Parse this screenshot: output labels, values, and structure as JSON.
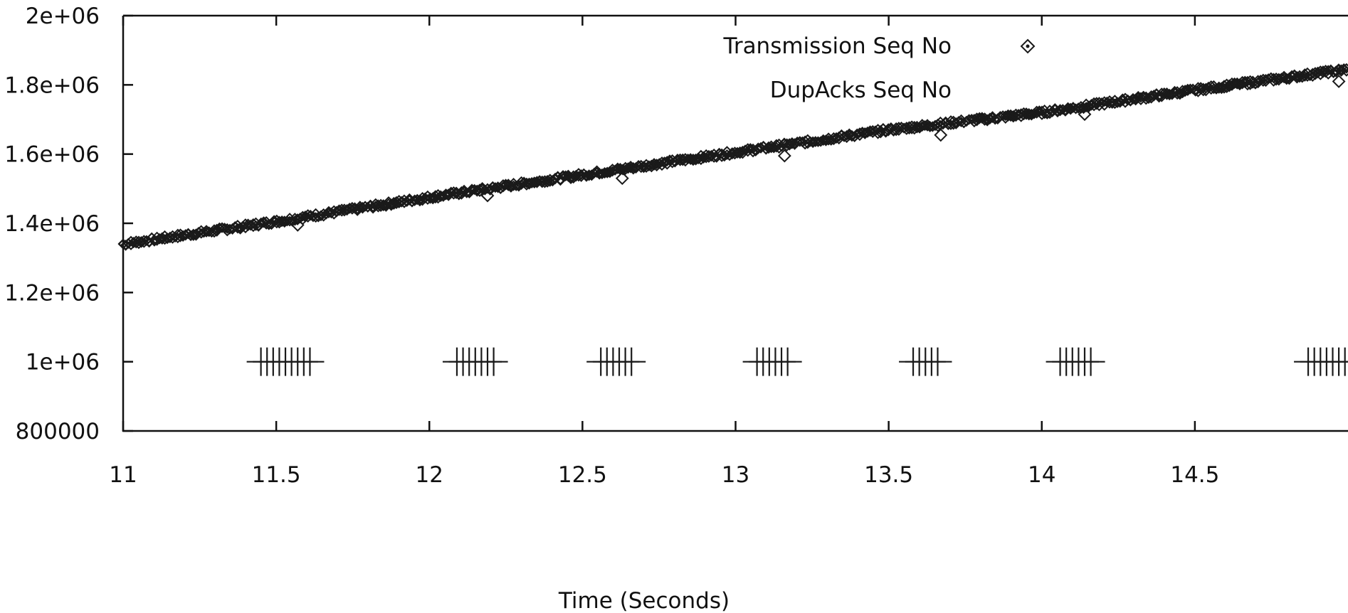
{
  "chart_data": {
    "type": "scatter",
    "xlabel": "Time (Seconds)",
    "ylabel": "",
    "xlim": [
      11,
      15
    ],
    "ylim": [
      800000,
      2000000
    ],
    "x_ticks": [
      11,
      11.5,
      12,
      12.5,
      13,
      13.5,
      14,
      14.5
    ],
    "x_tick_labels": [
      "11",
      "11.5",
      "12",
      "12.5",
      "13",
      "13.5",
      "14",
      "14.5"
    ],
    "y_ticks": [
      800000,
      1000000,
      1200000,
      1400000,
      1600000,
      1800000,
      2000000
    ],
    "y_tick_labels": [
      "800000",
      "1e+06",
      "1.2e+06",
      "1.4e+06",
      "1.6e+06",
      "1.8e+06",
      "2e+06"
    ],
    "legend_position": "top-right",
    "series": [
      {
        "name": "Transmission Seq No",
        "marker": "diamond",
        "line": {
          "x": [
            11.0,
            11.5,
            12.0,
            12.5,
            13.0,
            13.5,
            14.0,
            14.5,
            15.0
          ],
          "y": [
            1340000,
            1405000,
            1475000,
            1540000,
            1605000,
            1670000,
            1720000,
            1785000,
            1845000
          ]
        },
        "dips": {
          "x": [
            11.57,
            12.19,
            12.63,
            13.16,
            13.67,
            14.14,
            14.97
          ],
          "y": [
            1395000,
            1480000,
            1530000,
            1595000,
            1655000,
            1715000,
            1810000
          ]
        }
      },
      {
        "name": "DupAcks Seq No",
        "marker": "plus",
        "x": [
          11.45,
          11.47,
          11.49,
          11.51,
          11.53,
          11.55,
          11.57,
          11.59,
          11.61,
          12.09,
          12.11,
          12.13,
          12.15,
          12.17,
          12.19,
          12.21,
          12.56,
          12.58,
          12.6,
          12.62,
          12.64,
          12.66,
          13.07,
          13.09,
          13.11,
          13.13,
          13.15,
          13.17,
          13.58,
          13.6,
          13.62,
          13.64,
          13.66,
          14.06,
          14.08,
          14.1,
          14.12,
          14.14,
          14.16,
          14.87,
          14.89,
          14.91,
          14.93,
          14.95,
          14.97,
          14.99
        ],
        "y": [
          1000000,
          1000000,
          1000000,
          1000000,
          1000000,
          1000000,
          1000000,
          1000000,
          1000000,
          1000000,
          1000000,
          1000000,
          1000000,
          1000000,
          1000000,
          1000000,
          1000000,
          1000000,
          1000000,
          1000000,
          1000000,
          1000000,
          1000000,
          1000000,
          1000000,
          1000000,
          1000000,
          1000000,
          1000000,
          1000000,
          1000000,
          1000000,
          1000000,
          1000000,
          1000000,
          1000000,
          1000000,
          1000000,
          1000000,
          1000000,
          1000000,
          1000000,
          1000000,
          1000000,
          1000000,
          1000000
        ]
      }
    ],
    "colors": {
      "marker": "#1a1a1a",
      "axis": "#111111",
      "background": "#ffffff"
    }
  }
}
